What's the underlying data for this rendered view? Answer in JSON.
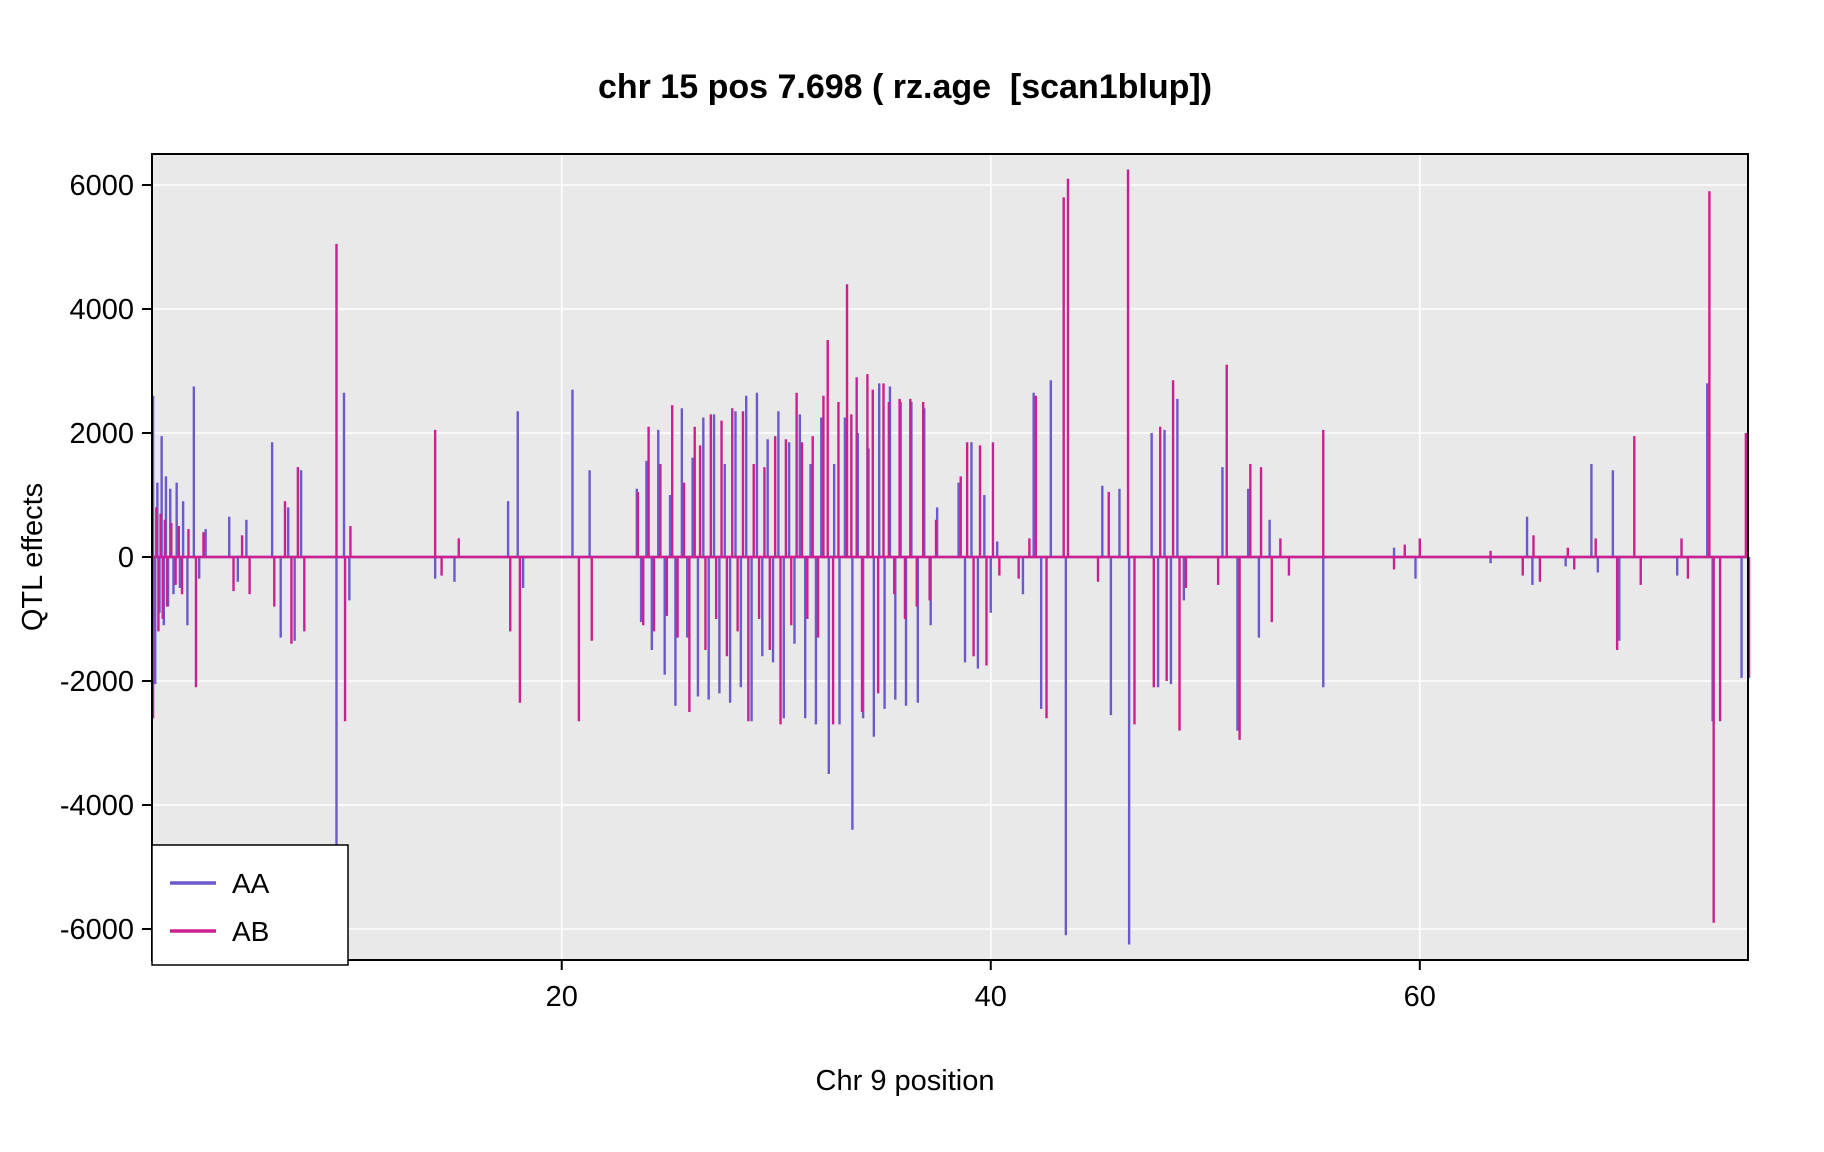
{
  "title": "chr 15 pos 7.698 ( rz.age  [scan1blup])",
  "xlabel": "Chr 9 position",
  "ylabel": "QTL effects",
  "legend": [
    {
      "label": "AA",
      "color": "#6A5ACD"
    },
    {
      "label": "AB",
      "color": "#CD2090"
    }
  ],
  "chart_data": {
    "type": "line",
    "title": "chr 15 pos 7.698 ( rz.age  [scan1blup])",
    "xlabel": "Chr 9 position",
    "ylabel": "QTL effects",
    "xlim": [
      0.9,
      75.3
    ],
    "ylim": [
      -6500,
      6500
    ],
    "x_ticks": [
      20,
      40,
      60
    ],
    "y_ticks": [
      -6000,
      -4000,
      -2000,
      0,
      2000,
      4000,
      6000
    ],
    "grid": true,
    "panel_bg": "#E9E9E9",
    "grid_color": "#FFFFFF",
    "legend_position": "bottom-left",
    "baseline": 0,
    "series": [
      {
        "name": "AA",
        "color": "#6A5ACD",
        "spikes": [
          [
            0.95,
            2600
          ],
          [
            1.05,
            -2050
          ],
          [
            1.15,
            1200
          ],
          [
            1.25,
            -900
          ],
          [
            1.35,
            1950
          ],
          [
            1.45,
            -1100
          ],
          [
            1.55,
            1300
          ],
          [
            1.65,
            -800
          ],
          [
            1.75,
            1100
          ],
          [
            1.9,
            -600
          ],
          [
            2.05,
            1200
          ],
          [
            2.2,
            -500
          ],
          [
            2.35,
            900
          ],
          [
            2.55,
            -1100
          ],
          [
            2.85,
            2750
          ],
          [
            3.1,
            -350
          ],
          [
            3.4,
            450
          ],
          [
            4.5,
            650
          ],
          [
            4.9,
            -400
          ],
          [
            5.3,
            600
          ],
          [
            6.5,
            1850
          ],
          [
            6.9,
            -1300
          ],
          [
            7.25,
            800
          ],
          [
            7.55,
            -1350
          ],
          [
            7.85,
            1400
          ],
          [
            9.5,
            -4800
          ],
          [
            9.85,
            2650
          ],
          [
            10.1,
            -700
          ],
          [
            14.1,
            -350
          ],
          [
            15.0,
            -400
          ],
          [
            17.5,
            900
          ],
          [
            17.95,
            2350
          ],
          [
            18.2,
            -500
          ],
          [
            20.5,
            2700
          ],
          [
            21.3,
            1400
          ],
          [
            23.5,
            1100
          ],
          [
            23.7,
            -1050
          ],
          [
            23.95,
            1550
          ],
          [
            24.2,
            -1500
          ],
          [
            24.5,
            2050
          ],
          [
            24.8,
            -1900
          ],
          [
            25.05,
            1000
          ],
          [
            25.3,
            -2400
          ],
          [
            25.6,
            2400
          ],
          [
            25.85,
            -1300
          ],
          [
            26.1,
            1600
          ],
          [
            26.35,
            -2250
          ],
          [
            26.6,
            2250
          ],
          [
            26.85,
            -2300
          ],
          [
            27.1,
            2300
          ],
          [
            27.35,
            -2200
          ],
          [
            27.6,
            1500
          ],
          [
            27.85,
            -2350
          ],
          [
            28.1,
            2350
          ],
          [
            28.35,
            -2100
          ],
          [
            28.6,
            2600
          ],
          [
            28.85,
            -2650
          ],
          [
            29.1,
            2650
          ],
          [
            29.35,
            -1600
          ],
          [
            29.6,
            1900
          ],
          [
            29.85,
            -1700
          ],
          [
            30.1,
            2350
          ],
          [
            30.35,
            -2600
          ],
          [
            30.6,
            1850
          ],
          [
            30.85,
            -1400
          ],
          [
            31.1,
            2300
          ],
          [
            31.35,
            -2600
          ],
          [
            31.6,
            1500
          ],
          [
            31.85,
            -2700
          ],
          [
            32.1,
            2250
          ],
          [
            32.45,
            -3500
          ],
          [
            32.7,
            1500
          ],
          [
            32.95,
            -2700
          ],
          [
            33.2,
            2250
          ],
          [
            33.55,
            -4400
          ],
          [
            33.8,
            2000
          ],
          [
            34.05,
            -2600
          ],
          [
            34.3,
            1750
          ],
          [
            34.55,
            -2900
          ],
          [
            34.8,
            2800
          ],
          [
            35.05,
            -2450
          ],
          [
            35.3,
            2750
          ],
          [
            35.55,
            -2300
          ],
          [
            35.8,
            2500
          ],
          [
            36.05,
            -2400
          ],
          [
            36.3,
            2500
          ],
          [
            36.6,
            -2350
          ],
          [
            36.9,
            2400
          ],
          [
            37.2,
            -1100
          ],
          [
            37.5,
            800
          ],
          [
            38.5,
            1200
          ],
          [
            38.8,
            -1700
          ],
          [
            39.1,
            1850
          ],
          [
            39.4,
            -1800
          ],
          [
            39.7,
            1000
          ],
          [
            40.0,
            -900
          ],
          [
            40.3,
            250
          ],
          [
            41.5,
            -600
          ],
          [
            42.0,
            2650
          ],
          [
            42.35,
            -2450
          ],
          [
            42.8,
            2850
          ],
          [
            43.5,
            -6100
          ],
          [
            45.2,
            1150
          ],
          [
            45.6,
            -2550
          ],
          [
            46.0,
            1100
          ],
          [
            46.45,
            -6250
          ],
          [
            47.5,
            2000
          ],
          [
            47.8,
            -2100
          ],
          [
            48.1,
            2050
          ],
          [
            48.4,
            -2050
          ],
          [
            48.7,
            2550
          ],
          [
            49.0,
            -700
          ],
          [
            50.8,
            1450
          ],
          [
            51.5,
            -2800
          ],
          [
            52.0,
            1100
          ],
          [
            52.5,
            -1300
          ],
          [
            53.0,
            600
          ],
          [
            55.5,
            -2100
          ],
          [
            58.8,
            150
          ],
          [
            59.8,
            -350
          ],
          [
            63.3,
            -100
          ],
          [
            65.0,
            650
          ],
          [
            65.25,
            -450
          ],
          [
            66.8,
            -150
          ],
          [
            68.0,
            1500
          ],
          [
            68.3,
            -250
          ],
          [
            69.0,
            1400
          ],
          [
            69.3,
            -1350
          ],
          [
            72.0,
            -300
          ],
          [
            73.4,
            2800
          ],
          [
            73.65,
            -2650
          ],
          [
            75.0,
            -1950
          ]
        ]
      },
      {
        "name": "AB",
        "color": "#CD2090",
        "spikes": [
          [
            0.95,
            -2600
          ],
          [
            1.1,
            800
          ],
          [
            1.2,
            -1200
          ],
          [
            1.3,
            700
          ],
          [
            1.4,
            -1000
          ],
          [
            1.5,
            600
          ],
          [
            1.6,
            -800
          ],
          [
            1.8,
            550
          ],
          [
            2.0,
            -450
          ],
          [
            2.15,
            500
          ],
          [
            2.3,
            -600
          ],
          [
            2.6,
            450
          ],
          [
            2.95,
            -2100
          ],
          [
            3.3,
            400
          ],
          [
            4.7,
            -550
          ],
          [
            5.1,
            350
          ],
          [
            5.45,
            -600
          ],
          [
            6.6,
            -800
          ],
          [
            7.1,
            900
          ],
          [
            7.4,
            -1400
          ],
          [
            7.7,
            1450
          ],
          [
            8.0,
            -1200
          ],
          [
            9.5,
            5050
          ],
          [
            9.9,
            -2650
          ],
          [
            10.15,
            500
          ],
          [
            14.1,
            2050
          ],
          [
            14.4,
            -300
          ],
          [
            15.2,
            300
          ],
          [
            17.6,
            -1200
          ],
          [
            18.05,
            -2350
          ],
          [
            20.8,
            -2650
          ],
          [
            21.4,
            -1350
          ],
          [
            23.55,
            1050
          ],
          [
            23.8,
            -1100
          ],
          [
            24.05,
            2100
          ],
          [
            24.3,
            -1200
          ],
          [
            24.6,
            1500
          ],
          [
            24.9,
            -950
          ],
          [
            25.15,
            2450
          ],
          [
            25.4,
            -1300
          ],
          [
            25.7,
            1200
          ],
          [
            25.95,
            -2500
          ],
          [
            26.2,
            2100
          ],
          [
            26.45,
            1800
          ],
          [
            26.7,
            -1500
          ],
          [
            26.95,
            2300
          ],
          [
            27.2,
            -1000
          ],
          [
            27.45,
            2200
          ],
          [
            27.7,
            -1600
          ],
          [
            27.95,
            2400
          ],
          [
            28.2,
            -1200
          ],
          [
            28.45,
            2350
          ],
          [
            28.7,
            -2650
          ],
          [
            28.95,
            1500
          ],
          [
            29.2,
            -1000
          ],
          [
            29.45,
            1450
          ],
          [
            29.7,
            -1500
          ],
          [
            29.95,
            1950
          ],
          [
            30.2,
            -2700
          ],
          [
            30.45,
            1900
          ],
          [
            30.7,
            -1100
          ],
          [
            30.95,
            2650
          ],
          [
            31.2,
            1850
          ],
          [
            31.45,
            -1000
          ],
          [
            31.7,
            1950
          ],
          [
            31.95,
            -1300
          ],
          [
            32.2,
            2600
          ],
          [
            32.4,
            3500
          ],
          [
            32.65,
            -2700
          ],
          [
            32.9,
            2500
          ],
          [
            33.3,
            4400
          ],
          [
            33.5,
            2300
          ],
          [
            33.75,
            2900
          ],
          [
            34.0,
            -2500
          ],
          [
            34.25,
            2950
          ],
          [
            34.5,
            2700
          ],
          [
            34.75,
            -2200
          ],
          [
            35.0,
            2800
          ],
          [
            35.25,
            2500
          ],
          [
            35.5,
            -600
          ],
          [
            35.75,
            2550
          ],
          [
            36.0,
            -1000
          ],
          [
            36.25,
            2550
          ],
          [
            36.55,
            -800
          ],
          [
            36.85,
            2500
          ],
          [
            37.15,
            -700
          ],
          [
            37.45,
            600
          ],
          [
            38.6,
            1300
          ],
          [
            38.9,
            1850
          ],
          [
            39.2,
            -1600
          ],
          [
            39.5,
            1800
          ],
          [
            39.8,
            -1750
          ],
          [
            40.1,
            1850
          ],
          [
            40.4,
            -300
          ],
          [
            41.3,
            -350
          ],
          [
            41.8,
            300
          ],
          [
            42.1,
            2600
          ],
          [
            42.6,
            -2600
          ],
          [
            43.4,
            5800
          ],
          [
            43.6,
            6100
          ],
          [
            45.0,
            -400
          ],
          [
            45.5,
            1050
          ],
          [
            46.4,
            6250
          ],
          [
            46.7,
            -2700
          ],
          [
            47.6,
            -2100
          ],
          [
            47.9,
            2100
          ],
          [
            48.2,
            -2000
          ],
          [
            48.5,
            2850
          ],
          [
            48.8,
            -2800
          ],
          [
            49.1,
            -500
          ],
          [
            50.6,
            -450
          ],
          [
            51.0,
            3100
          ],
          [
            51.6,
            -2950
          ],
          [
            52.1,
            1500
          ],
          [
            52.6,
            1450
          ],
          [
            53.1,
            -1050
          ],
          [
            53.5,
            300
          ],
          [
            53.9,
            -300
          ],
          [
            55.5,
            2050
          ],
          [
            58.8,
            -200
          ],
          [
            59.3,
            200
          ],
          [
            60.0,
            300
          ],
          [
            63.3,
            100
          ],
          [
            64.8,
            -300
          ],
          [
            65.3,
            350
          ],
          [
            65.6,
            -400
          ],
          [
            66.9,
            150
          ],
          [
            67.2,
            -200
          ],
          [
            68.2,
            300
          ],
          [
            69.2,
            -1500
          ],
          [
            70.0,
            1950
          ],
          [
            70.3,
            -450
          ],
          [
            72.2,
            300
          ],
          [
            72.5,
            -350
          ],
          [
            73.5,
            5900
          ],
          [
            73.7,
            -5900
          ],
          [
            74.0,
            -2650
          ],
          [
            75.2,
            2000
          ],
          [
            75.35,
            -1950
          ]
        ]
      }
    ]
  }
}
